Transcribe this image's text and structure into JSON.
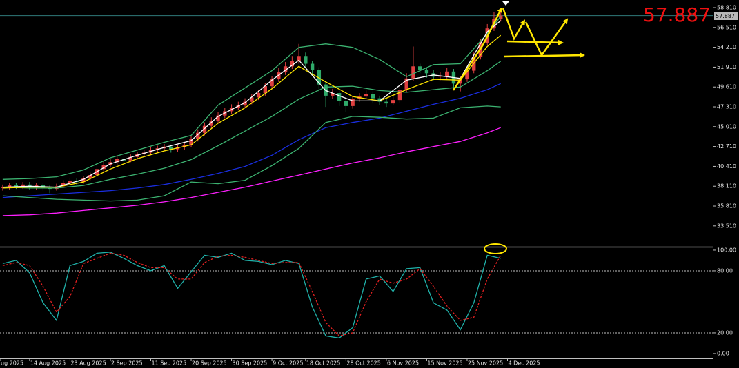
{
  "chart_data": [
    {
      "type": "candlestick",
      "xlim": [
        -0.4,
        105.5
      ],
      "ylim": [
        31.1,
        59.69
      ],
      "yticks": [
        {
          "value": 58.81,
          "label": "58.810"
        },
        {
          "value": 56.51,
          "label": "56.510"
        },
        {
          "value": 54.21,
          "label": "54.210"
        },
        {
          "value": 51.91,
          "label": "51.910"
        },
        {
          "value": 49.61,
          "label": "49.610"
        },
        {
          "value": 47.31,
          "label": "47.310"
        },
        {
          "value": 45.01,
          "label": "45.010"
        },
        {
          "value": 42.71,
          "label": "42.710"
        },
        {
          "value": 40.41,
          "label": "40.410"
        },
        {
          "value": 38.11,
          "label": "38.110"
        },
        {
          "value": 35.81,
          "label": "35.810"
        },
        {
          "value": 33.51,
          "label": "33.510"
        }
      ],
      "xticks": [
        {
          "value": -0.4,
          "label": "ug 2025"
        },
        {
          "value": 4,
          "label": "14 Aug 2025"
        },
        {
          "value": 10,
          "label": "23 Aug 2025"
        },
        {
          "value": 16,
          "label": "2 Sep 2025"
        },
        {
          "value": 22,
          "label": "11 Sep 2025"
        },
        {
          "value": 28,
          "label": "20 Sep 2025"
        },
        {
          "value": 34,
          "label": "30 Sep 2025"
        },
        {
          "value": 40,
          "label": "9 Oct 2025"
        },
        {
          "value": 45,
          "label": "18 Oct 2025"
        },
        {
          "value": 51,
          "label": "28 Oct 2025"
        },
        {
          "value": 57,
          "label": "6 Nov 2025"
        },
        {
          "value": 63,
          "label": "15 Nov 2025"
        },
        {
          "value": 69,
          "label": "25 Nov 2025"
        },
        {
          "value": 75,
          "label": "4 Dec 2025"
        }
      ],
      "current_price": 57.887,
      "up_color": "#e04040",
      "down_color": "#2faa6a",
      "price_line_color": "#2f7a7a",
      "open": [
        37.9,
        38.0,
        38.2,
        38.1,
        38.3,
        38.0,
        38.2,
        37.9,
        37.8,
        38.1,
        38.5,
        38.7,
        38.6,
        39.0,
        39.4,
        40.1,
        40.6,
        40.9,
        41.3,
        41.1,
        41.5,
        41.8,
        42.0,
        42.3,
        42.5,
        42.7,
        42.4,
        42.6,
        42.9,
        43.6,
        44.3,
        45.1,
        45.7,
        46.3,
        46.8,
        47.2,
        47.5,
        47.9,
        48.4,
        48.9,
        49.7,
        50.5,
        51.3,
        52.0,
        52.6,
        53.2,
        52.3,
        51.6,
        49.9,
        48.6,
        48.9,
        48.0,
        47.4,
        48.2,
        48.5,
        48.8,
        48.3,
        47.9,
        47.7,
        48.1,
        49.3,
        50.6,
        52.0,
        51.6,
        51.2,
        50.8,
        50.9,
        51.4,
        50.0,
        50.5,
        51.5,
        53.1,
        54.7,
        56.4,
        57.5
      ],
      "high": [
        38.3,
        38.5,
        38.5,
        38.6,
        38.6,
        38.5,
        38.5,
        38.2,
        38.4,
        38.8,
        39.0,
        39.0,
        39.3,
        39.7,
        40.5,
        41.0,
        41.3,
        41.6,
        41.6,
        41.8,
        42.1,
        42.3,
        42.6,
        42.8,
        43.0,
        42.9,
        42.9,
        43.2,
        43.9,
        44.7,
        45.5,
        46.1,
        46.7,
        47.2,
        47.6,
        47.9,
        48.3,
        48.8,
        49.3,
        50.1,
        50.9,
        51.8,
        52.5,
        53.2,
        54.6,
        53.6,
        52.6,
        51.9,
        50.2,
        49.4,
        49.2,
        48.4,
        48.6,
        48.9,
        49.2,
        49.1,
        48.6,
        48.2,
        48.5,
        49.7,
        51.2,
        54.3,
        52.3,
        51.9,
        51.6,
        51.3,
        51.8,
        51.7,
        50.9,
        51.9,
        53.6,
        55.2,
        56.9,
        58.3,
        58.8
      ],
      "low": [
        37.6,
        37.7,
        37.8,
        37.8,
        37.7,
        37.7,
        37.6,
        37.3,
        37.6,
        37.9,
        38.3,
        38.3,
        38.4,
        38.8,
        39.2,
        39.8,
        40.3,
        40.6,
        40.8,
        40.9,
        41.2,
        41.5,
        41.7,
        42.0,
        42.2,
        42.0,
        42.1,
        42.3,
        42.6,
        43.3,
        44.0,
        44.8,
        45.4,
        46.0,
        46.5,
        46.9,
        47.2,
        47.6,
        48.1,
        48.6,
        49.4,
        50.2,
        51.0,
        51.7,
        52.3,
        51.8,
        51.0,
        49.0,
        47.3,
        48.2,
        47.4,
        46.7,
        47.1,
        47.9,
        48.2,
        47.7,
        47.5,
        47.3,
        47.5,
        47.8,
        49.0,
        50.3,
        51.2,
        50.7,
        50.4,
        50.4,
        50.6,
        49.4,
        49.1,
        50.2,
        51.2,
        52.8,
        54.5,
        56.1,
        57.2
      ],
      "close": [
        38.0,
        38.2,
        38.1,
        38.3,
        38.0,
        38.2,
        37.9,
        37.8,
        38.1,
        38.5,
        38.7,
        38.6,
        39.0,
        39.4,
        40.1,
        40.6,
        40.9,
        41.3,
        41.1,
        41.5,
        41.8,
        42.0,
        42.3,
        42.5,
        42.7,
        42.4,
        42.6,
        42.9,
        43.6,
        44.3,
        45.1,
        45.7,
        46.3,
        46.8,
        47.2,
        47.5,
        47.9,
        48.4,
        48.9,
        49.7,
        50.5,
        51.3,
        52.0,
        52.6,
        53.2,
        52.3,
        51.6,
        49.9,
        48.6,
        48.9,
        48.0,
        47.4,
        48.2,
        48.5,
        48.8,
        48.3,
        47.9,
        47.7,
        48.1,
        49.3,
        50.6,
        52.0,
        51.6,
        51.2,
        50.8,
        50.9,
        51.4,
        50.0,
        50.5,
        51.5,
        53.1,
        54.7,
        56.4,
        57.5,
        57.887
      ],
      "lines": {
        "x": [
          0,
          4,
          8,
          12,
          16,
          20,
          24,
          28,
          32,
          36,
          40,
          44,
          48,
          52,
          56,
          60,
          64,
          68,
          72,
          74
        ],
        "series": [
          {
            "color": "#ff20ff",
            "values": [
              34.7,
              34.8,
              35.0,
              35.3,
              35.6,
              35.9,
              36.3,
              36.8,
              37.4,
              38.0,
              38.7,
              39.4,
              40.1,
              40.8,
              41.4,
              42.1,
              42.7,
              43.3,
              44.3,
              44.9
            ]
          },
          {
            "color": "#1a2ee0",
            "values": [
              36.8,
              37.0,
              37.2,
              37.4,
              37.6,
              37.9,
              38.3,
              38.9,
              39.6,
              40.4,
              41.7,
              43.5,
              44.9,
              45.5,
              46.0,
              46.8,
              47.6,
              48.3,
              49.3,
              50.0
            ]
          },
          {
            "color": "#3cb371",
            "values": [
              38.9,
              39.0,
              39.2,
              40.0,
              41.4,
              42.3,
              43.2,
              44.0,
              47.5,
              49.5,
              51.5,
              54.2,
              54.6,
              54.2,
              52.8,
              50.8,
              52.2,
              52.3,
              55.8,
              57.8
            ]
          },
          {
            "color": "#3cb371",
            "values": [
              38.0,
              37.9,
              37.9,
              38.2,
              38.9,
              39.5,
              40.2,
              41.2,
              42.8,
              44.5,
              46.2,
              48.2,
              49.6,
              49.7,
              49.2,
              49.0,
              49.3,
              49.6,
              51.5,
              52.6
            ]
          },
          {
            "color": "#3cb371",
            "values": [
              37.0,
              36.8,
              36.6,
              36.5,
              36.4,
              36.5,
              37.0,
              38.6,
              38.4,
              38.8,
              40.5,
              42.5,
              45.5,
              46.2,
              46.1,
              45.9,
              46.0,
              47.2,
              47.4,
              47.3
            ]
          },
          {
            "color": "#ffe600",
            "values": [
              37.9,
              38.0,
              38.0,
              38.6,
              40.1,
              41.3,
              42.2,
              42.9,
              45.4,
              47.2,
              49.4,
              52.0,
              50.2,
              48.5,
              48.0,
              49.3,
              50.5,
              50.4,
              54.3,
              55.6
            ]
          },
          {
            "color": "#ffffff",
            "values": [
              38.0,
              38.1,
              38.0,
              38.9,
              40.7,
              41.7,
              42.6,
              43.4,
              46.2,
              47.8,
              50.4,
              52.7,
              49.2,
              48.0,
              48.0,
              50.4,
              51.0,
              50.6,
              56.0,
              57.3
            ]
          }
        ]
      }
    },
    {
      "type": "line",
      "xlim": [
        -0.4,
        105.5
      ],
      "ylim": [
        -4.7,
        103.3
      ],
      "yticks": [
        {
          "value": 100,
          "label": "100.00"
        },
        {
          "value": 80,
          "label": "80.00"
        },
        {
          "value": 20,
          "label": "20.00"
        },
        {
          "value": 0,
          "label": "0.00"
        }
      ],
      "levels": [
        80,
        20
      ],
      "x": [
        0,
        2,
        4,
        6,
        8,
        10,
        12,
        14,
        16,
        18,
        20,
        22,
        24,
        26,
        28,
        30,
        32,
        34,
        36,
        38,
        40,
        42,
        44,
        46,
        48,
        50,
        52,
        54,
        56,
        58,
        60,
        62,
        64,
        66,
        68,
        70,
        72,
        74
      ],
      "series": [
        {
          "color": "#20b2aa",
          "dashed": false,
          "values": [
            87,
            90,
            78,
            49,
            32,
            85,
            89,
            97,
            98,
            92,
            85,
            80,
            85,
            63,
            79,
            95,
            93,
            97,
            90,
            89,
            86,
            90,
            87,
            45,
            17,
            15,
            25,
            72,
            75,
            60,
            82,
            83,
            49,
            42,
            23,
            49,
            95,
            92
          ]
        },
        {
          "color": "#e02020",
          "dashed": true,
          "values": [
            85,
            88,
            85,
            65,
            40,
            55,
            87,
            92,
            97,
            95,
            88,
            83,
            83,
            72,
            72,
            88,
            94,
            95,
            93,
            90,
            87,
            88,
            88,
            60,
            30,
            17,
            20,
            50,
            72,
            68,
            72,
            82,
            65,
            46,
            32,
            35,
            72,
            95
          ]
        }
      ]
    }
  ]
}
